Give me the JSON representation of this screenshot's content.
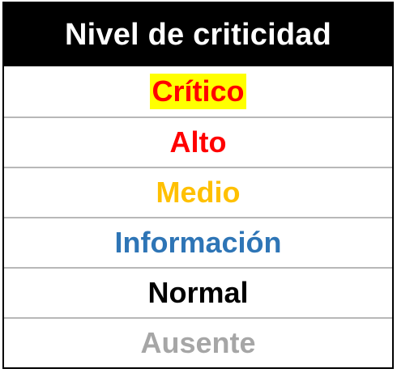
{
  "table": {
    "header": "Nivel de criticidad",
    "rows": [
      {
        "label": "Crítico",
        "color": "#ff0000",
        "highlight": "#ffff00"
      },
      {
        "label": "Alto",
        "color": "#ff0000"
      },
      {
        "label": "Medio",
        "color": "#ffc000"
      },
      {
        "label": "Información",
        "color": "#2e75b6"
      },
      {
        "label": "Normal",
        "color": "#000000"
      },
      {
        "label": "Ausente",
        "color": "#a6a6a6"
      }
    ]
  },
  "colors": {
    "header_bg": "#000000",
    "header_text": "#ffffff",
    "row_border": "#b8b8b8"
  }
}
